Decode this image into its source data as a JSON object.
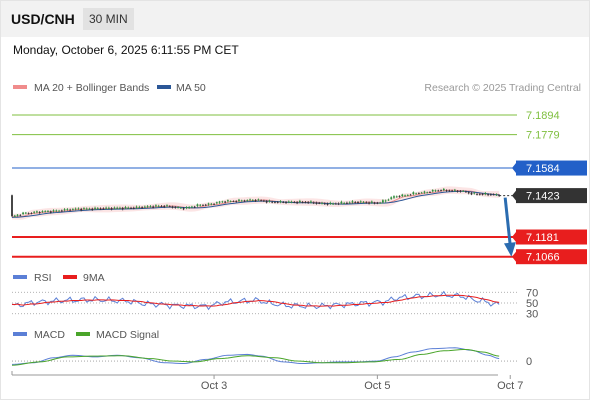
{
  "header": {
    "symbol": "USD/CNH",
    "timeframe": "30 MIN",
    "datetime": "Monday, October 6, 2025 6:11:55 PM CET"
  },
  "colors": {
    "ma20": "#f08c8c",
    "ma50": "#2b5797",
    "resistance": "#7fbf3f",
    "pivot": "#2360c8",
    "support": "#e81e1e",
    "current": "#333333",
    "rsi": "#5b7fd6",
    "rsi_ma": "#e81e1e",
    "macd": "#5b7fd6",
    "macd_signal": "#4aa52a",
    "arrow": "#2b6cb0"
  },
  "chart_data": [
    {
      "type": "line",
      "legend": [
        "MA 20 + Bollinger Bands",
        "MA 50"
      ],
      "copyright": "Research © 2025 Trading Central",
      "levels": [
        {
          "value": 7.1894,
          "kind": "resistance",
          "label": "7.1894"
        },
        {
          "value": 7.1779,
          "kind": "resistance",
          "label": "7.1779"
        },
        {
          "value": 7.1584,
          "kind": "pivot",
          "label": "7.1584"
        },
        {
          "value": 7.1423,
          "kind": "current",
          "label": "7.1423"
        },
        {
          "value": 7.1181,
          "kind": "support",
          "label": "7.1181"
        },
        {
          "value": 7.1066,
          "kind": "support",
          "label": "7.1066"
        }
      ],
      "x_ticks": [
        {
          "label": "Oct 3",
          "index": 73
        },
        {
          "label": "Oct 5",
          "index": 132
        },
        {
          "label": "Oct 7",
          "index": 180
        }
      ],
      "x_range": [
        0,
        181
      ],
      "ylim": [
        7.1035,
        7.2005
      ],
      "forecast": {
        "from": 7.1423,
        "to": 7.1066,
        "direction": "down"
      },
      "anchors": [
        [
          0,
          7.13
        ],
        [
          5,
          7.132
        ],
        [
          12,
          7.133
        ],
        [
          25,
          7.1345
        ],
        [
          40,
          7.135
        ],
        [
          55,
          7.1362
        ],
        [
          62,
          7.135
        ],
        [
          70,
          7.137
        ],
        [
          78,
          7.139
        ],
        [
          88,
          7.1397
        ],
        [
          95,
          7.1385
        ],
        [
          105,
          7.1385
        ],
        [
          115,
          7.1375
        ],
        [
          125,
          7.1385
        ],
        [
          132,
          7.138
        ],
        [
          140,
          7.142
        ],
        [
          148,
          7.144
        ],
        [
          155,
          7.1455
        ],
        [
          162,
          7.145
        ],
        [
          168,
          7.1432
        ],
        [
          173,
          7.143
        ],
        [
          176,
          7.1425
        ]
      ]
    },
    {
      "type": "line",
      "legend": [
        "RSI",
        "9MA"
      ],
      "levels": [
        70,
        50,
        30
      ],
      "ylim": [
        22,
        78
      ],
      "anchors": [
        [
          0,
          45
        ],
        [
          10,
          52
        ],
        [
          20,
          55
        ],
        [
          30,
          56
        ],
        [
          40,
          54
        ],
        [
          50,
          48
        ],
        [
          60,
          45
        ],
        [
          70,
          44
        ],
        [
          78,
          52
        ],
        [
          88,
          55
        ],
        [
          95,
          48
        ],
        [
          100,
          45
        ],
        [
          110,
          44
        ],
        [
          120,
          47
        ],
        [
          128,
          50
        ],
        [
          134,
          52
        ],
        [
          140,
          60
        ],
        [
          148,
          63
        ],
        [
          155,
          65
        ],
        [
          162,
          63
        ],
        [
          168,
          55
        ],
        [
          176,
          47
        ]
      ]
    },
    {
      "type": "line",
      "legend": [
        "MACD",
        "MACD Signal"
      ],
      "zero_label": "0",
      "ylim": [
        -0.6,
        1.15
      ],
      "macd": [
        [
          0,
          -0.2
        ],
        [
          8,
          -0.1
        ],
        [
          15,
          0.2
        ],
        [
          22,
          0.35
        ],
        [
          30,
          0.25
        ],
        [
          38,
          0.35
        ],
        [
          46,
          0.2
        ],
        [
          55,
          -0.1
        ],
        [
          62,
          -0.15
        ],
        [
          70,
          0.1
        ],
        [
          78,
          0.35
        ],
        [
          85,
          0.4
        ],
        [
          90,
          0.3
        ],
        [
          98,
          -0.05
        ],
        [
          105,
          -0.15
        ],
        [
          112,
          -0.1
        ],
        [
          118,
          -0.05
        ],
        [
          125,
          -0.05
        ],
        [
          132,
          0.0
        ],
        [
          138,
          0.25
        ],
        [
          145,
          0.55
        ],
        [
          152,
          0.75
        ],
        [
          160,
          0.8
        ],
        [
          166,
          0.65
        ],
        [
          172,
          0.35
        ],
        [
          176,
          0.15
        ]
      ],
      "signal": [
        [
          0,
          -0.25
        ],
        [
          10,
          -0.05
        ],
        [
          20,
          0.25
        ],
        [
          30,
          0.3
        ],
        [
          40,
          0.32
        ],
        [
          50,
          0.15
        ],
        [
          58,
          0.0
        ],
        [
          66,
          -0.05
        ],
        [
          75,
          0.15
        ],
        [
          85,
          0.32
        ],
        [
          95,
          0.2
        ],
        [
          103,
          0.0
        ],
        [
          112,
          -0.1
        ],
        [
          120,
          -0.1
        ],
        [
          130,
          -0.05
        ],
        [
          140,
          0.1
        ],
        [
          148,
          0.4
        ],
        [
          156,
          0.62
        ],
        [
          164,
          0.7
        ],
        [
          170,
          0.55
        ],
        [
          176,
          0.3
        ]
      ]
    }
  ]
}
